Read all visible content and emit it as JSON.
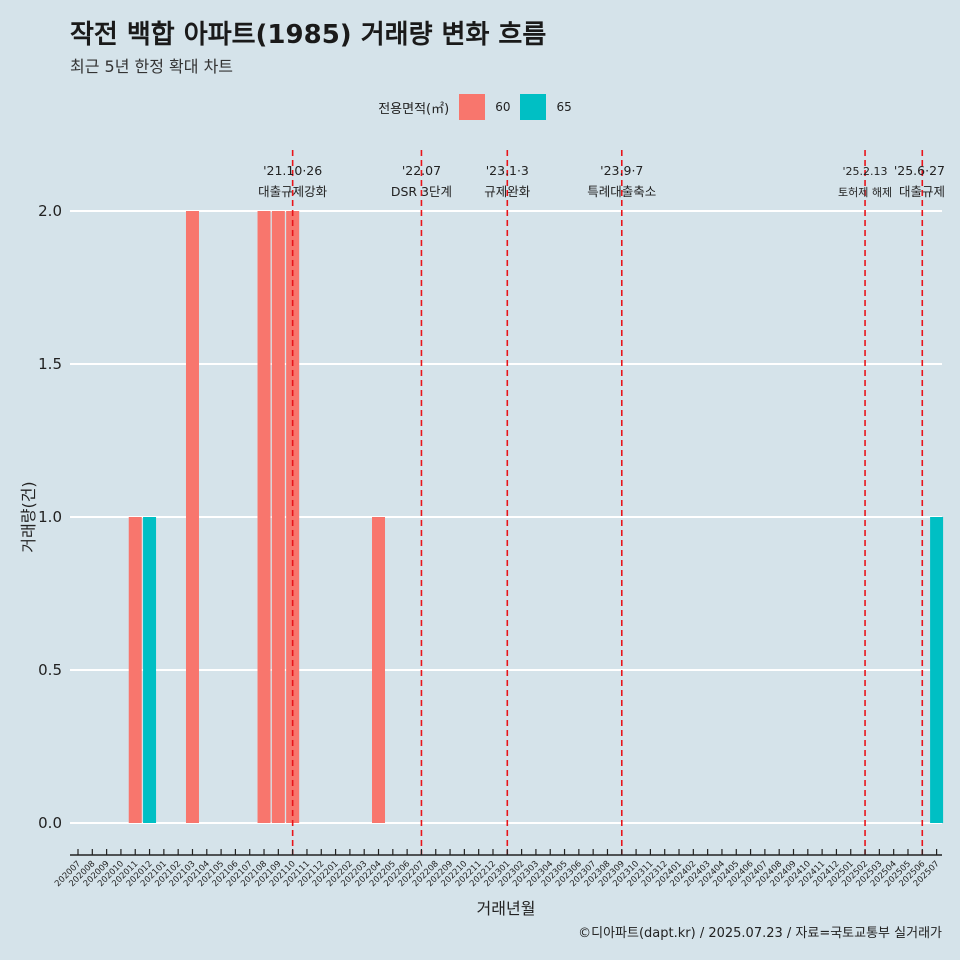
{
  "title": "작전 백합 아파트(1985) 거래량 변화 흐름",
  "subtitle": "최근 5년 한정 확대 차트",
  "caption": "©디아파트(dapt.kr) / 2025.07.23 / 자료=국토교통부 실거래가",
  "colors": {
    "background": "#d5e3ea",
    "area60": "#f8766d",
    "area65": "#00bfc4",
    "vline": "#e8141a",
    "grid": "#ffffff"
  },
  "legend": {
    "title": "전용면적(㎡)",
    "items": [
      {
        "label": "60",
        "color": "#f8766d"
      },
      {
        "label": "65",
        "color": "#00bfc4"
      }
    ]
  },
  "chart_data": {
    "type": "bar",
    "xlabel": "거래년월",
    "ylabel": "거래량(건)",
    "ylim": [
      0,
      2
    ],
    "yticks": [
      "0.0",
      "0.5",
      "1.0",
      "1.5",
      "2.0"
    ],
    "grid": true,
    "legend_position": "top",
    "categories": [
      "202007",
      "202008",
      "202009",
      "202010",
      "202011",
      "202012",
      "202101",
      "202102",
      "202103",
      "202104",
      "202105",
      "202106",
      "202107",
      "202108",
      "202109",
      "202110",
      "202111",
      "202112",
      "202201",
      "202202",
      "202203",
      "202204",
      "202205",
      "202206",
      "202207",
      "202208",
      "202209",
      "202210",
      "202211",
      "202212",
      "202301",
      "202302",
      "202303",
      "202304",
      "202305",
      "202306",
      "202307",
      "202308",
      "202309",
      "202310",
      "202311",
      "202312",
      "202401",
      "202402",
      "202403",
      "202404",
      "202405",
      "202406",
      "202407",
      "202408",
      "202409",
      "202410",
      "202411",
      "202412",
      "202501",
      "202502",
      "202503",
      "202504",
      "202505",
      "202506",
      "202507"
    ],
    "bars": [
      {
        "month": "202011",
        "area": "60",
        "value": 1
      },
      {
        "month": "202012",
        "area": "65",
        "value": 1
      },
      {
        "month": "202103",
        "area": "60",
        "value": 2
      },
      {
        "month": "202108",
        "area": "60",
        "value": 2
      },
      {
        "month": "202109",
        "area": "60",
        "value": 2
      },
      {
        "month": "202110",
        "area": "60",
        "value": 2
      },
      {
        "month": "202204",
        "area": "60",
        "value": 1
      },
      {
        "month": "202507",
        "area": "65",
        "value": 1
      }
    ],
    "events": [
      {
        "month": "202110",
        "date": "'21.10·26",
        "label": "대출규제강화",
        "small": false
      },
      {
        "month": "202207",
        "date": "'22.07",
        "label": "DSR 3단계",
        "small": false
      },
      {
        "month": "202301",
        "date": "'23.1·3",
        "label": "규제완화",
        "small": false
      },
      {
        "month": "202309",
        "date": "'23.9·7",
        "label": "특례대출축소",
        "small": false
      },
      {
        "month": "202502",
        "date": "'25.2.13",
        "label": "토허제 해제",
        "small": true
      },
      {
        "month": "202506",
        "date": "'25.6·27",
        "label": "대출규제",
        "small": false
      }
    ]
  }
}
